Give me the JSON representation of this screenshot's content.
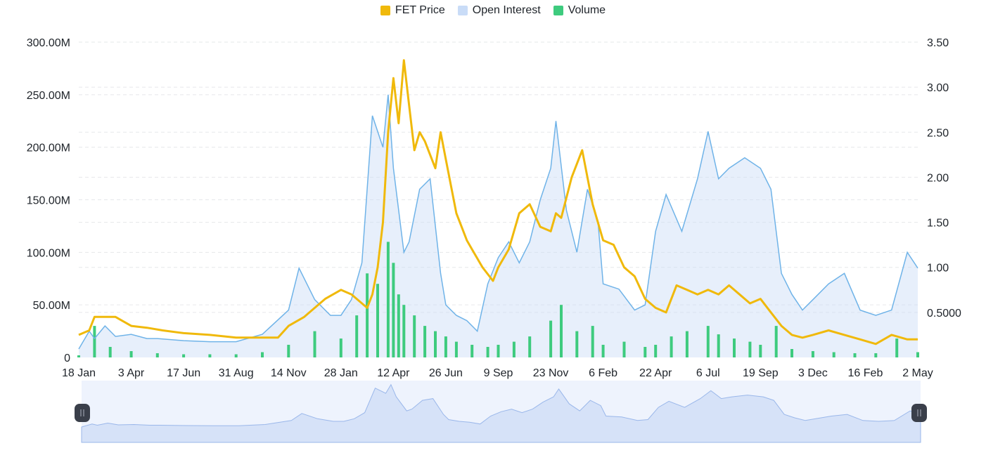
{
  "legend": {
    "price_label": "FET Price",
    "oi_label": "Open Interest",
    "volume_label": "Volume"
  },
  "colors": {
    "price": "#f0b90b",
    "open_interest_line": "#6fb3e8",
    "open_interest_fill": "#c9dcf7",
    "volume": "#3ecb7e",
    "grid": "#e6e8ea",
    "navigator_bg": "#eef3fd",
    "navigator_area": "#d6e2f8",
    "navigator_line": "#9ab7ea",
    "handle": "#3a3f4a"
  },
  "chart_data": {
    "type": "line",
    "x_tick_labels": [
      "18 Jan",
      "3 Apr",
      "17 Jun",
      "31 Aug",
      "14 Nov",
      "28 Jan",
      "12 Apr",
      "26 Jun",
      "9 Sep",
      "23 Nov",
      "6 Feb",
      "22 Apr",
      "6 Jul",
      "19 Sep",
      "3 Dec",
      "16 Feb",
      "2 May"
    ],
    "left_axis": {
      "ticks": [
        "0",
        "50.00M",
        "100.00M",
        "150.00M",
        "200.00M",
        "250.00M",
        "300.00M"
      ],
      "range": [
        0,
        300000000
      ]
    },
    "right_axis": {
      "ticks": [
        "0.5000",
        "1.00",
        "1.50",
        "2.00",
        "2.50",
        "3.00",
        "3.50"
      ],
      "range": [
        0.0,
        3.5
      ]
    },
    "grid": true,
    "legend_position": "top-center",
    "series": [
      {
        "name": "Open Interest",
        "axis": "left",
        "style": "area",
        "x": [
          0,
          0.2,
          0.3,
          0.5,
          0.7,
          1.0,
          1.3,
          1.5,
          2.0,
          2.5,
          3.0,
          3.5,
          4.0,
          4.2,
          4.5,
          4.8,
          5.0,
          5.2,
          5.4,
          5.6,
          5.8,
          5.9,
          6.0,
          6.2,
          6.3,
          6.5,
          6.7,
          6.9,
          7.0,
          7.2,
          7.4,
          7.6,
          7.8,
          8.0,
          8.2,
          8.4,
          8.6,
          8.8,
          9.0,
          9.1,
          9.3,
          9.5,
          9.7,
          9.9,
          10.0,
          10.3,
          10.6,
          10.8,
          11.0,
          11.2,
          11.5,
          11.8,
          12.0,
          12.2,
          12.4,
          12.7,
          13.0,
          13.2,
          13.4,
          13.6,
          13.8,
          14.0,
          14.3,
          14.6,
          14.9,
          15.2,
          15.5,
          15.8,
          16.0
        ],
        "values": [
          8000000,
          25000000,
          18000000,
          30000000,
          20000000,
          22000000,
          18000000,
          18000000,
          16000000,
          15000000,
          15000000,
          22000000,
          45000000,
          85000000,
          55000000,
          40000000,
          40000000,
          55000000,
          90000000,
          230000000,
          200000000,
          250000000,
          180000000,
          100000000,
          110000000,
          160000000,
          170000000,
          80000000,
          50000000,
          40000000,
          35000000,
          25000000,
          70000000,
          95000000,
          110000000,
          90000000,
          110000000,
          150000000,
          180000000,
          225000000,
          140000000,
          100000000,
          160000000,
          130000000,
          70000000,
          65000000,
          45000000,
          50000000,
          120000000,
          155000000,
          120000000,
          170000000,
          215000000,
          170000000,
          180000000,
          190000000,
          180000000,
          160000000,
          80000000,
          60000000,
          45000000,
          55000000,
          70000000,
          80000000,
          45000000,
          40000000,
          45000000,
          100000000,
          85000000
        ]
      },
      {
        "name": "FET Price",
        "axis": "right",
        "style": "line",
        "x": [
          0,
          0.2,
          0.3,
          0.5,
          0.7,
          1.0,
          1.3,
          1.6,
          2.0,
          2.5,
          3.0,
          3.5,
          3.8,
          4.0,
          4.3,
          4.5,
          4.7,
          5.0,
          5.2,
          5.4,
          5.5,
          5.6,
          5.7,
          5.8,
          5.9,
          6.0,
          6.1,
          6.2,
          6.3,
          6.4,
          6.5,
          6.6,
          6.8,
          6.9,
          7.0,
          7.1,
          7.2,
          7.4,
          7.5,
          7.7,
          7.9,
          8.0,
          8.2,
          8.4,
          8.6,
          8.8,
          9.0,
          9.1,
          9.2,
          9.4,
          9.6,
          9.8,
          10.0,
          10.2,
          10.4,
          10.6,
          10.8,
          11.0,
          11.2,
          11.4,
          11.6,
          11.8,
          12.0,
          12.2,
          12.4,
          12.6,
          12.8,
          13.0,
          13.2,
          13.4,
          13.6,
          13.8,
          14.0,
          14.3,
          14.6,
          14.9,
          15.2,
          15.5,
          15.8,
          16.0
        ],
        "values": [
          0.25,
          0.3,
          0.45,
          0.45,
          0.45,
          0.35,
          0.33,
          0.3,
          0.27,
          0.25,
          0.22,
          0.22,
          0.22,
          0.35,
          0.45,
          0.55,
          0.65,
          0.75,
          0.7,
          0.6,
          0.55,
          0.7,
          1.0,
          1.5,
          2.5,
          3.1,
          2.6,
          3.3,
          2.8,
          2.3,
          2.5,
          2.4,
          2.1,
          2.5,
          2.2,
          1.9,
          1.6,
          1.3,
          1.2,
          1.0,
          0.85,
          1.0,
          1.2,
          1.6,
          1.7,
          1.45,
          1.4,
          1.6,
          1.55,
          2.0,
          2.3,
          1.7,
          1.3,
          1.25,
          1.0,
          0.9,
          0.65,
          0.55,
          0.5,
          0.8,
          0.75,
          0.7,
          0.75,
          0.7,
          0.8,
          0.7,
          0.6,
          0.65,
          0.5,
          0.35,
          0.25,
          0.22,
          0.25,
          0.3,
          0.25,
          0.2,
          0.15,
          0.25,
          0.2,
          0.2
        ]
      },
      {
        "name": "Volume",
        "axis": "left",
        "style": "bar",
        "x": [
          0,
          0.3,
          0.6,
          1.0,
          1.5,
          2.0,
          2.5,
          3.0,
          3.5,
          4.0,
          4.5,
          5.0,
          5.3,
          5.5,
          5.7,
          5.9,
          6.0,
          6.1,
          6.2,
          6.4,
          6.6,
          6.8,
          7.0,
          7.2,
          7.5,
          7.8,
          8.0,
          8.3,
          8.6,
          9.0,
          9.2,
          9.5,
          9.8,
          10.0,
          10.4,
          10.8,
          11.0,
          11.3,
          11.6,
          12.0,
          12.2,
          12.5,
          12.8,
          13.0,
          13.3,
          13.6,
          14.0,
          14.4,
          14.8,
          15.2,
          15.6,
          16.0
        ],
        "values": [
          2000000,
          30000000,
          10000000,
          6000000,
          4000000,
          3000000,
          3000000,
          3000000,
          5000000,
          12000000,
          25000000,
          18000000,
          40000000,
          80000000,
          70000000,
          110000000,
          90000000,
          60000000,
          50000000,
          40000000,
          30000000,
          25000000,
          20000000,
          15000000,
          12000000,
          10000000,
          12000000,
          15000000,
          20000000,
          35000000,
          50000000,
          25000000,
          30000000,
          12000000,
          15000000,
          10000000,
          12000000,
          20000000,
          25000000,
          30000000,
          22000000,
          18000000,
          15000000,
          12000000,
          30000000,
          8000000,
          6000000,
          5000000,
          4000000,
          4000000,
          18000000,
          5000000
        ]
      }
    ]
  }
}
